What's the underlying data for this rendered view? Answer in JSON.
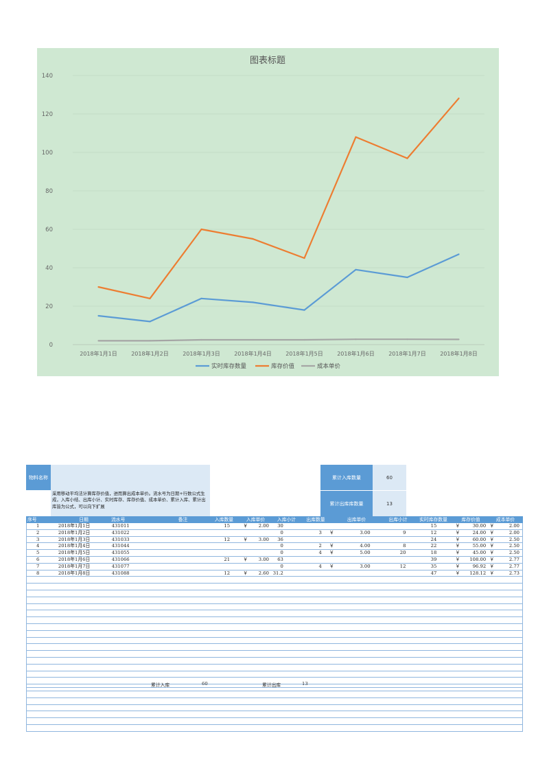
{
  "chart_data": {
    "type": "line",
    "title": "图表标题",
    "categories": [
      "2018年1月1日",
      "2018年1月2日",
      "2018年1月3日",
      "2018年1月4日",
      "2018年1月5日",
      "2018年1月6日",
      "2018年1月7日",
      "2018年1月8日"
    ],
    "series": [
      {
        "name": "实时库存数量",
        "color": "#5b9bd5",
        "values": [
          15,
          12,
          24,
          22,
          18,
          39,
          35,
          47
        ]
      },
      {
        "name": "库存价值",
        "color": "#ed7d31",
        "values": [
          30,
          24,
          60,
          55,
          45,
          108,
          96.92,
          128.12
        ]
      },
      {
        "name": "成本单价",
        "color": "#a5a5a5",
        "values": [
          2,
          2,
          2.5,
          2.5,
          2.5,
          2.77,
          2.77,
          2.73
        ]
      }
    ],
    "ylim": [
      0,
      140
    ],
    "yticks": [
      0,
      20,
      40,
      60,
      80,
      100,
      120,
      140
    ],
    "grid": true,
    "legend": "bottom"
  },
  "info": {
    "material_label": "物料名称",
    "material_value": "",
    "note": "采用移动平均法计算库存价值，进而算出成本单价。流水号为日期+行数公式生成，入库小结、出库小计、实时库存、库存价值、成本单价、累计入库、累计出库皆为公式，可以向下扩展",
    "total_in_label": "累计入库数量",
    "total_in_value": "60",
    "total_out_label": "累计出库库数量",
    "total_out_value": "13"
  },
  "table": {
    "headers": [
      "序号",
      "日期",
      "流水号",
      "备注",
      "入库数量",
      "入库单价",
      "入库小计",
      "出库数量",
      "出库单价",
      "出库小计",
      "实时库存数量",
      "库存价值",
      "成本单价"
    ],
    "rows": [
      {
        "no": "1",
        "date": "2018年1月1日",
        "serial": "431011",
        "note": "",
        "in_qty": "15",
        "in_cur": "￥",
        "in_price": "2.00",
        "in_sub": "30",
        "out_qty": "",
        "out_cur": "",
        "out_price": "",
        "out_sub": "",
        "stock": "15",
        "val_cur": "￥",
        "value": "30.00",
        "cost_cur": "￥",
        "cost": "2.00"
      },
      {
        "no": "2",
        "date": "2018年1月2日",
        "serial": "431022",
        "note": "",
        "in_qty": "",
        "in_cur": "",
        "in_price": "",
        "in_sub": "0",
        "out_qty": "3",
        "out_cur": "￥",
        "out_price": "3.00",
        "out_sub": "9",
        "stock": "12",
        "val_cur": "￥",
        "value": "24.00",
        "cost_cur": "￥",
        "cost": "2.00"
      },
      {
        "no": "3",
        "date": "2018年1月3日",
        "serial": "431033",
        "note": "",
        "in_qty": "12",
        "in_cur": "￥",
        "in_price": "3.00",
        "in_sub": "36",
        "out_qty": "",
        "out_cur": "",
        "out_price": "",
        "out_sub": "",
        "stock": "24",
        "val_cur": "￥",
        "value": "60.00",
        "cost_cur": "￥",
        "cost": "2.50"
      },
      {
        "no": "4",
        "date": "2018年1月4日",
        "serial": "431044",
        "note": "",
        "in_qty": "",
        "in_cur": "",
        "in_price": "",
        "in_sub": "0",
        "out_qty": "2",
        "out_cur": "￥",
        "out_price": "4.00",
        "out_sub": "8",
        "stock": "22",
        "val_cur": "￥",
        "value": "55.00",
        "cost_cur": "￥",
        "cost": "2.50"
      },
      {
        "no": "5",
        "date": "2018年1月5日",
        "serial": "431055",
        "note": "",
        "in_qty": "",
        "in_cur": "",
        "in_price": "",
        "in_sub": "0",
        "out_qty": "4",
        "out_cur": "￥",
        "out_price": "5.00",
        "out_sub": "20",
        "stock": "18",
        "val_cur": "￥",
        "value": "45.00",
        "cost_cur": "￥",
        "cost": "2.50"
      },
      {
        "no": "6",
        "date": "2018年1月6日",
        "serial": "431066",
        "note": "",
        "in_qty": "21",
        "in_cur": "￥",
        "in_price": "3.00",
        "in_sub": "63",
        "out_qty": "",
        "out_cur": "",
        "out_price": "",
        "out_sub": "",
        "stock": "39",
        "val_cur": "￥",
        "value": "108.00",
        "cost_cur": "￥",
        "cost": "2.77"
      },
      {
        "no": "7",
        "date": "2018年1月7日",
        "serial": "431077",
        "note": "",
        "in_qty": "",
        "in_cur": "",
        "in_price": "",
        "in_sub": "0",
        "out_qty": "4",
        "out_cur": "￥",
        "out_price": "3.00",
        "out_sub": "12",
        "stock": "35",
        "val_cur": "￥",
        "value": "96.92",
        "cost_cur": "￥",
        "cost": "2.77"
      },
      {
        "no": "8",
        "date": "2018年1月8日",
        "serial": "431088",
        "note": "",
        "in_qty": "12",
        "in_cur": "￥",
        "in_price": "2.60",
        "in_sub": "31.2",
        "out_qty": "",
        "out_cur": "",
        "out_price": "",
        "out_sub": "",
        "stock": "47",
        "val_cur": "￥",
        "value": "128.12",
        "cost_cur": "￥",
        "cost": "2.73"
      }
    ],
    "footer": {
      "in_label": "累计入库",
      "in_value": "60",
      "out_label": "累计出库",
      "out_value": "13"
    }
  }
}
